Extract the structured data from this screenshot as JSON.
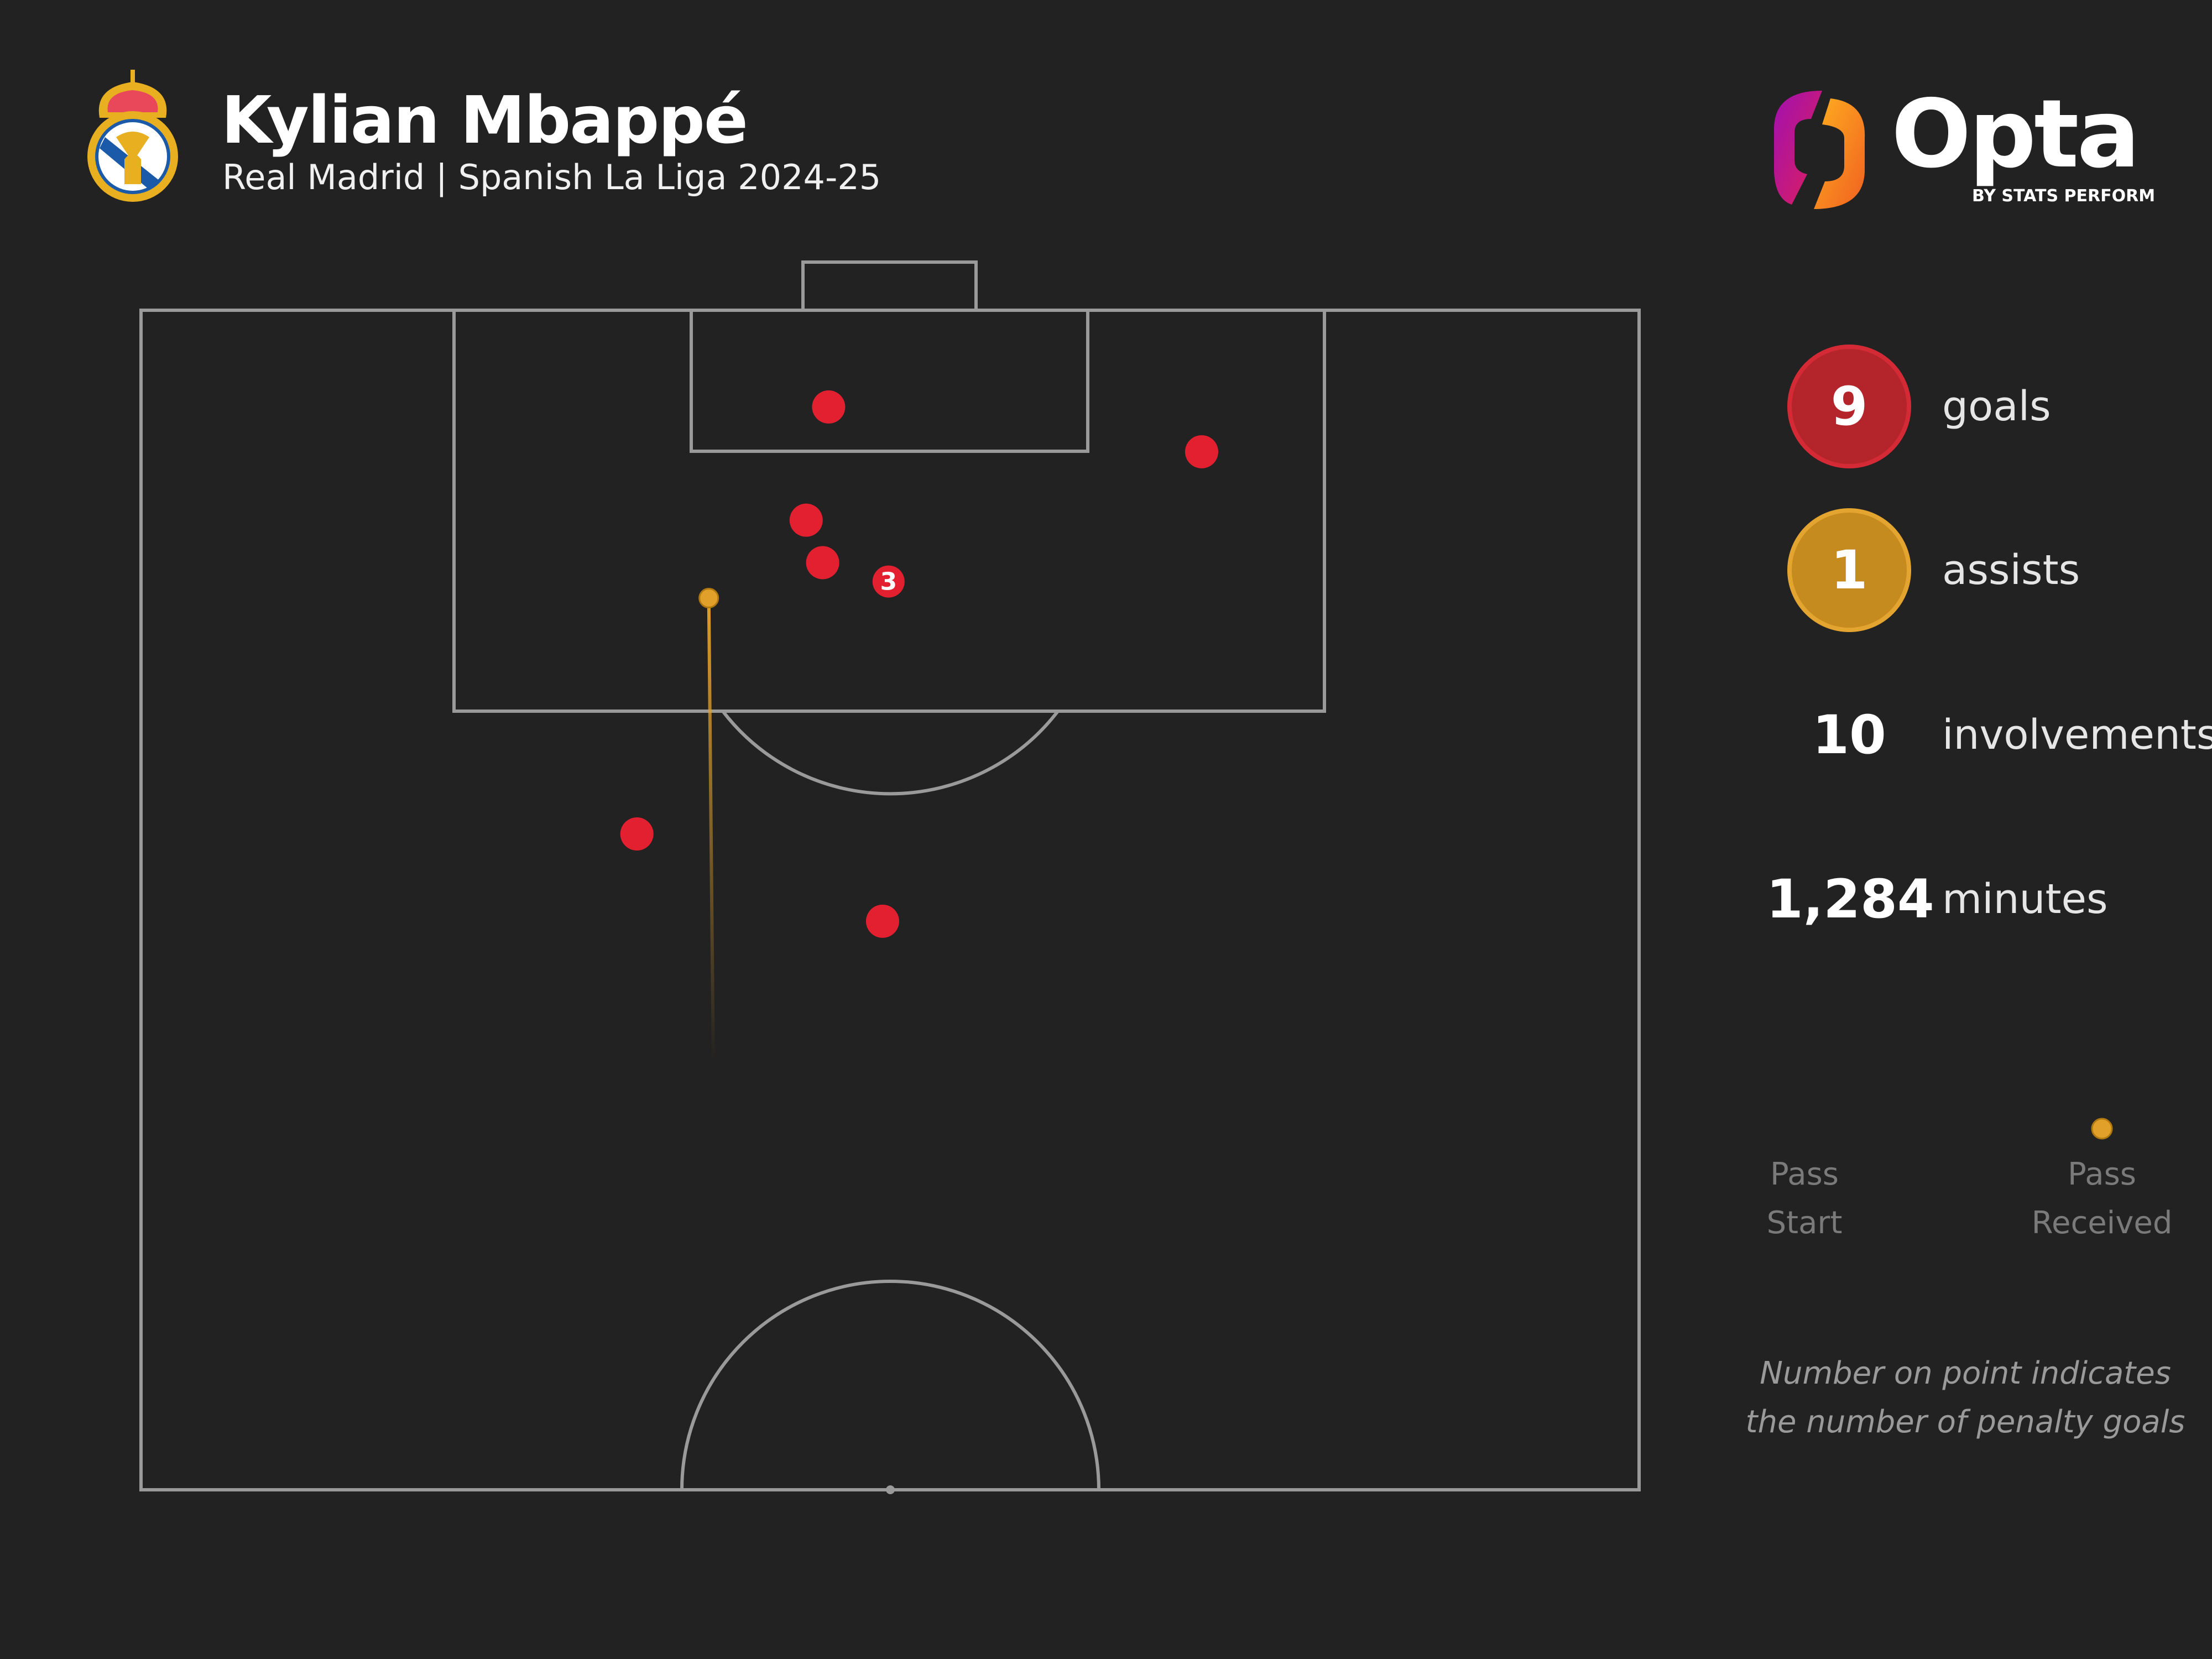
{
  "header": {
    "player_name": "Kylian Mbappé",
    "subtitle": "Real Madrid | Spanish La Liga 2024-25",
    "club_crest": "Real Madrid crest",
    "brand": {
      "name": "Opta",
      "tagline": "BY STATS PERFORM"
    }
  },
  "stats": [
    {
      "value": "9",
      "label": "goals",
      "color": "#b3242b"
    },
    {
      "value": "1",
      "label": "assists",
      "color": "#c68b1f"
    },
    {
      "value": "10",
      "label": "involvements"
    },
    {
      "value": "1,284",
      "label": "minutes"
    }
  ],
  "legend": {
    "start_label_1": "Pass",
    "start_label_2": "Start",
    "end_label_1": "Pass",
    "end_label_2": "Received"
  },
  "footnote": {
    "line1": "Number on point indicates",
    "line2": "the number of penalty goals"
  },
  "colors": {
    "background": "#222222",
    "goal": "#e32030",
    "assist": "#e0a02a",
    "pitch_lines": "#9a9a9a"
  },
  "chart_data": {
    "type": "scatter",
    "pitch": "half-pitch, attacking upward",
    "coordinate_system": "x 0-100 along pitch length (100 = goal line), y 0-100 across width",
    "goals": [
      {
        "x": 95.9,
        "y": 45.9,
        "count": 1
      },
      {
        "x": 94.0,
        "y": 70.8,
        "count": 1
      },
      {
        "x": 91.1,
        "y": 44.4,
        "count": 1
      },
      {
        "x": 89.3,
        "y": 45.5,
        "count": 1
      },
      {
        "x": 88.5,
        "y": 49.9,
        "count": 3,
        "label": "3",
        "penalty": true
      },
      {
        "x": 77.8,
        "y": 33.1,
        "count": 1
      },
      {
        "x": 74.1,
        "y": 49.5,
        "count": 1
      }
    ],
    "assists": [
      {
        "start": {
          "x": 68.2,
          "y": 38.2
        },
        "end": {
          "x": 87.8,
          "y": 37.9
        }
      }
    ]
  }
}
